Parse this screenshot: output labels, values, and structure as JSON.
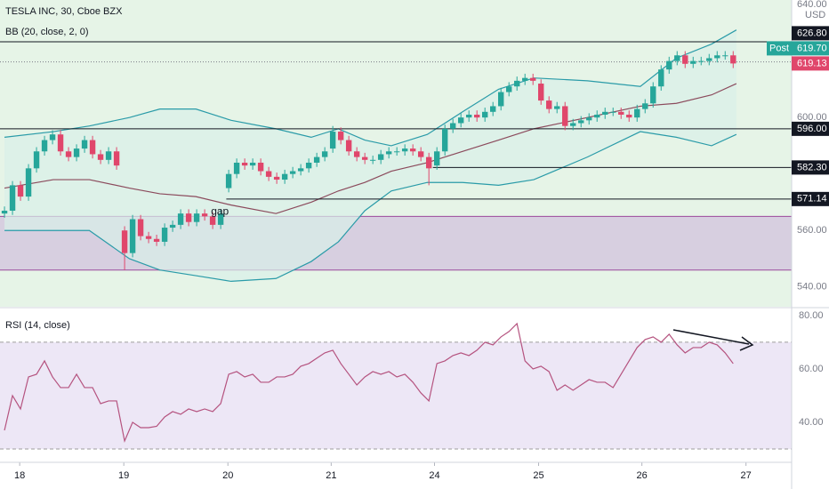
{
  "chart_data": [
    {
      "type": "candlestick",
      "title": "TESLA INC, 30, Cboe BZX",
      "currency": "USD",
      "indicator": "BB (20, close, 2, 0)",
      "up_color": "#26a69a",
      "down_color": "#e0466b",
      "background": "#e6f4e7",
      "open": [
        566,
        567,
        576,
        572,
        582,
        588,
        592,
        594,
        588,
        586,
        589,
        592,
        587,
        585,
        588,
        560,
        552,
        564,
        558,
        557,
        556,
        561,
        562,
        566,
        563,
        566,
        565,
        562,
        575,
        580,
        584,
        583,
        584,
        581,
        579,
        578,
        580,
        581,
        582,
        584,
        586,
        589,
        595,
        592,
        588,
        586,
        585,
        585,
        587,
        588,
        588,
        589,
        588,
        586,
        583,
        588,
        596,
        598,
        600,
        601,
        600,
        602,
        604,
        609,
        611,
        613,
        614,
        612,
        606,
        603,
        604,
        597,
        598,
        599,
        600,
        601,
        602,
        602,
        601,
        600,
        603,
        605,
        611,
        617,
        620,
        622,
        619,
        620,
        620,
        621,
        622,
        622
      ],
      "high": [
        568.5,
        577.5,
        577.5,
        583.5,
        589.5,
        593.5,
        595.5,
        595.5,
        589.5,
        590.5,
        593.5,
        593.5,
        588.5,
        589.5,
        589.5,
        561.5,
        565.5,
        565.5,
        559.5,
        558.5,
        562.5,
        563.5,
        567.5,
        567.5,
        567.5,
        567.5,
        566.5,
        567.5,
        581.5,
        585.5,
        585.5,
        585.5,
        585.5,
        582.5,
        580.5,
        581.5,
        582.5,
        583.5,
        585.5,
        587.5,
        589.5,
        597,
        596.5,
        593.5,
        589.5,
        587.5,
        586.5,
        588.5,
        589.5,
        589.5,
        590.5,
        590.5,
        589.5,
        587.5,
        589.5,
        597.5,
        599.5,
        601.5,
        602.5,
        602.5,
        603.5,
        605.5,
        610.5,
        612.5,
        614.5,
        615.5,
        615.5,
        613.5,
        607.5,
        605.5,
        605.5,
        599.5,
        600.5,
        601.5,
        602.5,
        603.5,
        603.5,
        603.5,
        602.5,
        604.5,
        606.5,
        612.5,
        618.5,
        621.5,
        623.5,
        623.5,
        621.5,
        621.5,
        622.5,
        623.5,
        623.5,
        623.5
      ],
      "low": [
        564.5,
        565.5,
        570.5,
        570.5,
        580.5,
        586.5,
        590.5,
        586.5,
        584.5,
        584.5,
        587.5,
        585.5,
        583.5,
        583.5,
        581.5,
        546,
        550.5,
        556.5,
        555.5,
        554.5,
        554.5,
        559.5,
        560.5,
        561.5,
        561.5,
        563.5,
        560.5,
        560.5,
        573.5,
        578.5,
        581.5,
        581.5,
        579.5,
        577.5,
        576.5,
        576.5,
        578.5,
        579.5,
        580.5,
        582.5,
        584.5,
        587.5,
        590.5,
        586.5,
        584.5,
        583.5,
        583.5,
        583.5,
        585.5,
        586.5,
        586.5,
        586.5,
        584.5,
        576,
        581.5,
        586.5,
        594.5,
        596.5,
        598.5,
        598.5,
        598.5,
        600.5,
        602.5,
        607.5,
        609.5,
        611.5,
        611.5,
        604.5,
        601.5,
        601.5,
        595.5,
        595.5,
        596.5,
        597.5,
        598.5,
        599.5,
        600.5,
        599.5,
        598.5,
        598.5,
        601.5,
        603.5,
        609.5,
        615.5,
        618.5,
        617.5,
        617.5,
        618.5,
        618.5,
        619.5,
        620.5,
        617.5
      ],
      "close": [
        567,
        576,
        572,
        582,
        588,
        592,
        594,
        588,
        586,
        589,
        592,
        587,
        585,
        588,
        583,
        552,
        564,
        558,
        557,
        556,
        561,
        562,
        566,
        563,
        566,
        565,
        562,
        566,
        580,
        584,
        583,
        584,
        581,
        579,
        578,
        580,
        581,
        582,
        584,
        586,
        588,
        595,
        592,
        588,
        586,
        585,
        585,
        587,
        588,
        588,
        589,
        588,
        586,
        582,
        588,
        596,
        598,
        600,
        601,
        600,
        602,
        604,
        609,
        611,
        613,
        614,
        613,
        606,
        603,
        604,
        597,
        598,
        599,
        600,
        601,
        602,
        602,
        601,
        600,
        603,
        605,
        611,
        617,
        620,
        622,
        619,
        620,
        620,
        621,
        622,
        622,
        619.13
      ],
      "bb": {
        "x": [
          0,
          6.1,
          10.6,
          15.6,
          19.4,
          23.9,
          28.3,
          33.9,
          38.3,
          41.7,
          45,
          48.3,
          52.8,
          57.2,
          61.7,
          66.1,
          72.8,
          79.4,
          83.9,
          88.3,
          91.4
        ],
        "upper": [
          593,
          595,
          597,
          600,
          603,
          603,
          599,
          596,
          593,
          596,
          592,
          590,
          594,
          602,
          610,
          614,
          613,
          611,
          621,
          626,
          631
        ],
        "middle": [
          575,
          578,
          578,
          575,
          573,
          572,
          569,
          566,
          570,
          574,
          577,
          581,
          584,
          588,
          592,
          596,
          600,
          604,
          605,
          608,
          612
        ],
        "lower": [
          560,
          560,
          560,
          550,
          546,
          544,
          542,
          543,
          549,
          556,
          567,
          574,
          577,
          577,
          576,
          578,
          586,
          595,
          593,
          590,
          594
        ],
        "band_color": "#2a9ba8",
        "middle_color": "#8b4a5c",
        "fill": "#d8efe8"
      },
      "xlim": [
        -0.56,
        98.3
      ],
      "ylim": [
        533,
        641.6
      ],
      "yticks": [
        {
          "value": 540,
          "label": "540.00"
        },
        {
          "value": 560,
          "label": "560.00"
        },
        {
          "value": 600,
          "label": "600.00"
        },
        {
          "value": 640,
          "label": "640.00"
        }
      ],
      "levels": [
        {
          "value": 626.8,
          "label": "626.80",
          "from": -0.56
        },
        {
          "value": 596,
          "label": "596.00",
          "from": -0.56
        },
        {
          "value": 582.3,
          "label": "582.30",
          "from": 53.5
        },
        {
          "value": 571.14,
          "label": "571.14",
          "from": 27.7
        }
      ],
      "price_labels": [
        {
          "value": 619.7,
          "label": "619.70",
          "tag": "Post",
          "color": "#26a69a"
        },
        {
          "value": 619.13,
          "label": "619.13",
          "color": "#e0466b"
        }
      ],
      "zone": {
        "from": 546,
        "to": 565,
        "color": "#d7cfe0",
        "border": "#9c4a9c"
      },
      "annotations": [
        {
          "text": "gap",
          "x": 26.9,
          "y": 566.5
        }
      ]
    },
    {
      "type": "line",
      "title": "RSI (14, close)",
      "color": "#b5537f",
      "values": [
        37,
        50,
        45,
        57,
        58,
        63,
        57,
        53,
        53,
        58,
        53,
        53,
        47,
        48,
        48,
        33,
        40,
        38,
        38,
        38.5,
        42,
        44,
        43,
        45,
        44,
        45,
        44,
        47,
        58,
        59,
        57,
        58,
        55,
        55,
        57,
        57,
        58,
        61,
        62,
        64,
        66,
        67,
        62,
        58,
        54,
        57,
        59,
        58,
        59,
        57,
        58,
        55,
        51,
        48,
        62,
        63,
        65,
        66,
        65,
        67,
        70,
        69,
        72,
        74,
        77,
        63,
        60,
        61,
        59,
        52,
        54,
        52,
        54,
        56,
        55,
        55,
        53,
        58,
        63,
        68,
        71,
        72,
        70,
        73,
        69,
        66,
        68,
        68,
        70,
        69,
        66,
        62
      ],
      "xlim": [
        -0.56,
        98.3
      ],
      "ylim": [
        25,
        82.3
      ],
      "yticks": [
        {
          "value": 40,
          "label": "40.00"
        },
        {
          "value": 60,
          "label": "60.00"
        },
        {
          "value": 80,
          "label": "80.00"
        }
      ],
      "bands": [
        30,
        70
      ],
      "band_fill": "#ede7f6",
      "band_line": "#9e9e9e",
      "xticks": [
        {
          "value": 1.9,
          "label": "18"
        },
        {
          "value": 14.9,
          "label": "19"
        },
        {
          "value": 27.9,
          "label": "20"
        },
        {
          "value": 40.8,
          "label": "21"
        },
        {
          "value": 53.7,
          "label": "24"
        },
        {
          "value": 66.7,
          "label": "25"
        },
        {
          "value": 79.6,
          "label": "26"
        },
        {
          "value": 92.6,
          "label": "27"
        }
      ]
    }
  ]
}
